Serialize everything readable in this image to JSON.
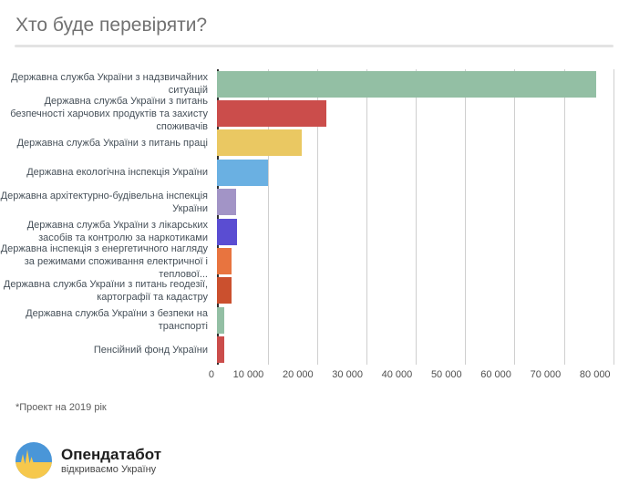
{
  "title": "Хто буде перевіряти?",
  "footnote": "*Проект на 2019 рік",
  "logo": {
    "name": "Опендатабот",
    "tagline": "відкриваємо Україну",
    "icon": "ukraine-pulse-circle",
    "colors": {
      "blue": "#4a96d8",
      "yellow": "#f6c84c"
    }
  },
  "chart_data": {
    "type": "bar",
    "orientation": "horizontal",
    "title": "Хто буде перевіряти?",
    "xlabel": "",
    "ylabel": "",
    "grid": true,
    "legend": "none",
    "xlim": [
      0,
      81000
    ],
    "xticks": [
      0,
      10000,
      20000,
      30000,
      40000,
      50000,
      60000,
      70000,
      80000
    ],
    "xtick_labels": [
      "0",
      "10 000",
      "20 000",
      "30 000",
      "40 000",
      "50 000",
      "60 000",
      "70 000",
      "80 000"
    ],
    "categories": [
      "Державна служба України з надзвичайних ситуацій",
      "Державна служба України з питань безпечності харчових продуктів та захисту споживачів",
      "Державна служба України з питань праці",
      "Державна екологічна інспекція України",
      "Державна архітектурно-будівельна інспекція України",
      "Державна служба України з лікарських засобів та контролю за наркотиками",
      "Державна інспекція з енергетичного нагляду за режимами споживання електричної і теплової...",
      "Державна служба України з питань геодезії, картографії та кадастру",
      "Державна служба України з безпеки на транспорті",
      "Пенсійний фонд України"
    ],
    "values": [
      76500,
      22000,
      17200,
      10400,
      3900,
      4100,
      3000,
      3000,
      1400,
      1400
    ],
    "colors": [
      "#93bfa4",
      "#cb4d4b",
      "#eac862",
      "#6ab0e2",
      "#a294c6",
      "#5a4dd2",
      "#e8743f",
      "#cb502e",
      "#93bfa4",
      "#cb4d4b"
    ],
    "axis_line_color": "#2f2f2f",
    "gridline_color": "#cfcfcf"
  }
}
